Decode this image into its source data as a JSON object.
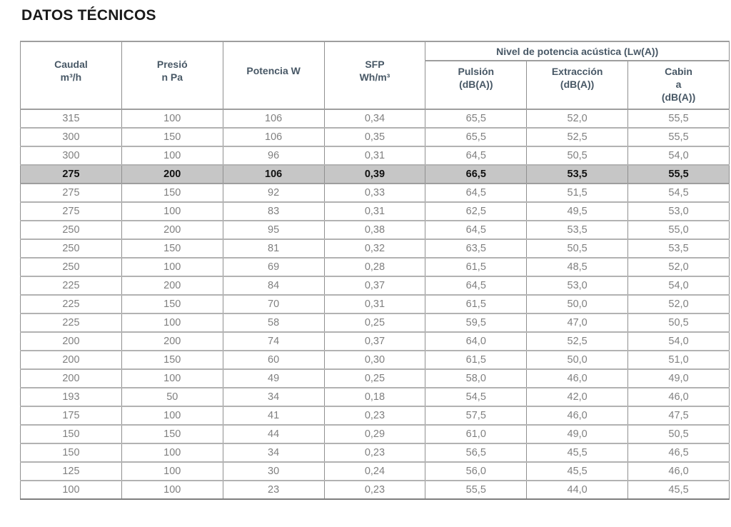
{
  "page": {
    "title": "DATOS TÉCNICOS"
  },
  "table": {
    "columns": [
      {
        "label": "Caudal\nm³/h"
      },
      {
        "label": "Presió\nn Pa"
      },
      {
        "label": "Potencia W"
      },
      {
        "label": "SFP\nWh/m³"
      }
    ],
    "group_header": "Nivel de potencia acústica (Lw(A))",
    "sub_columns": [
      {
        "label": "Pulsión\n(dB(A))"
      },
      {
        "label": "Extracción\n(dB(A))"
      },
      {
        "label": "Cabin\na\n(dB(A))"
      }
    ],
    "rows": [
      {
        "highlighted": false,
        "values": [
          "315",
          "100",
          "106",
          "0,34",
          "65,5",
          "52,0",
          "55,5"
        ]
      },
      {
        "highlighted": false,
        "values": [
          "300",
          "150",
          "106",
          "0,35",
          "65,5",
          "52,5",
          "55,5"
        ]
      },
      {
        "highlighted": false,
        "values": [
          "300",
          "100",
          "96",
          "0,31",
          "64,5",
          "50,5",
          "54,0"
        ]
      },
      {
        "highlighted": true,
        "values": [
          "275",
          "200",
          "106",
          "0,39",
          "66,5",
          "53,5",
          "55,5"
        ]
      },
      {
        "highlighted": false,
        "values": [
          "275",
          "150",
          "92",
          "0,33",
          "64,5",
          "51,5",
          "54,5"
        ]
      },
      {
        "highlighted": false,
        "values": [
          "275",
          "100",
          "83",
          "0,31",
          "62,5",
          "49,5",
          "53,0"
        ]
      },
      {
        "highlighted": false,
        "values": [
          "250",
          "200",
          "95",
          "0,38",
          "64,5",
          "53,5",
          "55,0"
        ]
      },
      {
        "highlighted": false,
        "values": [
          "250",
          "150",
          "81",
          "0,32",
          "63,5",
          "50,5",
          "53,5"
        ]
      },
      {
        "highlighted": false,
        "values": [
          "250",
          "100",
          "69",
          "0,28",
          "61,5",
          "48,5",
          "52,0"
        ]
      },
      {
        "highlighted": false,
        "values": [
          "225",
          "200",
          "84",
          "0,37",
          "64,5",
          "53,0",
          "54,0"
        ]
      },
      {
        "highlighted": false,
        "values": [
          "225",
          "150",
          "70",
          "0,31",
          "61,5",
          "50,0",
          "52,0"
        ]
      },
      {
        "highlighted": false,
        "values": [
          "225",
          "100",
          "58",
          "0,25",
          "59,5",
          "47,0",
          "50,5"
        ]
      },
      {
        "highlighted": false,
        "values": [
          "200",
          "200",
          "74",
          "0,37",
          "64,0",
          "52,5",
          "54,0"
        ]
      },
      {
        "highlighted": false,
        "values": [
          "200",
          "150",
          "60",
          "0,30",
          "61,5",
          "50,0",
          "51,0"
        ]
      },
      {
        "highlighted": false,
        "values": [
          "200",
          "100",
          "49",
          "0,25",
          "58,0",
          "46,0",
          "49,0"
        ]
      },
      {
        "highlighted": false,
        "values": [
          "193",
          "50",
          "34",
          "0,18",
          "54,5",
          "42,0",
          "46,0"
        ]
      },
      {
        "highlighted": false,
        "values": [
          "175",
          "100",
          "41",
          "0,23",
          "57,5",
          "46,0",
          "47,5"
        ]
      },
      {
        "highlighted": false,
        "values": [
          "150",
          "150",
          "44",
          "0,29",
          "61,0",
          "49,0",
          "50,5"
        ]
      },
      {
        "highlighted": false,
        "values": [
          "150",
          "100",
          "34",
          "0,23",
          "56,5",
          "45,5",
          "46,5"
        ]
      },
      {
        "highlighted": false,
        "values": [
          "125",
          "100",
          "30",
          "0,24",
          "56,0",
          "45,5",
          "46,0"
        ]
      },
      {
        "highlighted": false,
        "values": [
          "100",
          "100",
          "23",
          "0,23",
          "55,5",
          "44,0",
          "45,5"
        ]
      }
    ]
  }
}
